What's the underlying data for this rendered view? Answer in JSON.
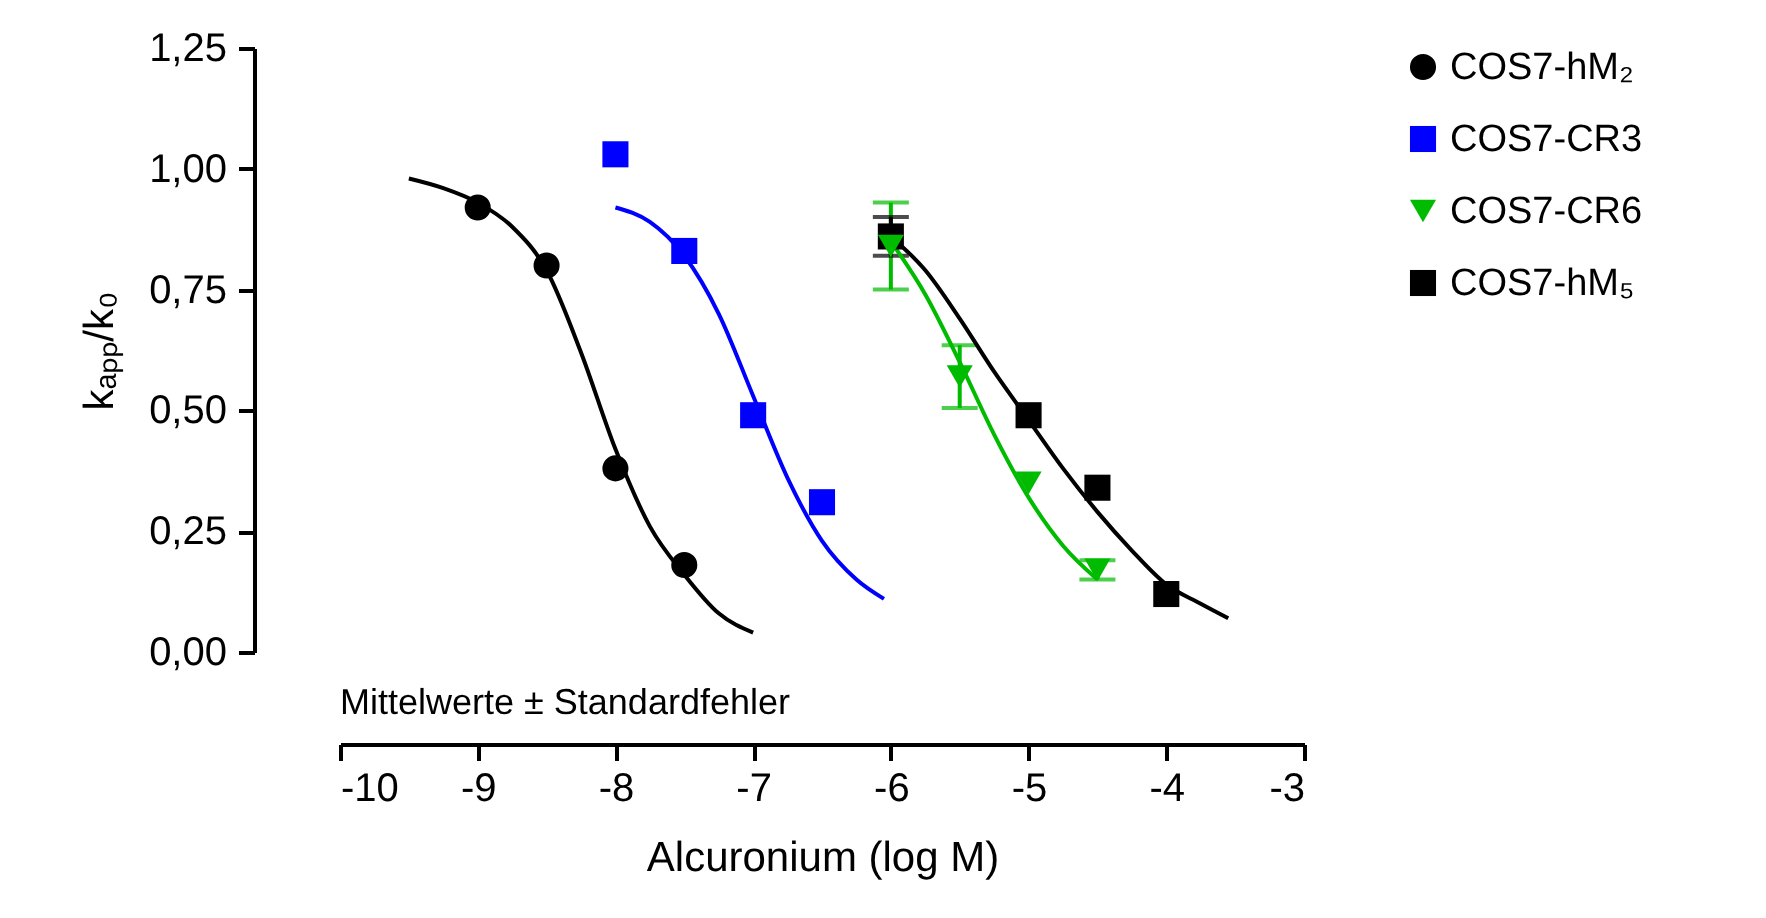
{
  "chart_data": {
    "type": "scatter",
    "xlabel": "Alcuronium (log M)",
    "ylabel": "kₐₚₚ/k₀",
    "annotations": [
      "Mittelwerte ± Standardfehler"
    ],
    "xlim": [
      -10,
      -3
    ],
    "xticks": [
      -10,
      -9,
      -8,
      -7,
      -6,
      -5,
      -4,
      -3
    ],
    "ylim": [
      0,
      1.25
    ],
    "yticks": [
      {
        "value": 0,
        "label": "0,00"
      },
      {
        "value": 0.25,
        "label": "0,25"
      },
      {
        "value": 0.5,
        "label": "0,50"
      },
      {
        "value": 0.75,
        "label": "0,75"
      },
      {
        "value": 1,
        "label": "1,00"
      },
      {
        "value": 1.25,
        "label": "1,25"
      }
    ],
    "legend": "right",
    "series": [
      {
        "name": "COS7-hM₂",
        "color": "#000000",
        "marker": "circle",
        "x": [
          -9,
          -8.5,
          -8,
          -7.5
        ],
        "values": [
          0.92,
          0.8,
          0.38,
          0.18
        ]
      },
      {
        "name": "COS7-CR3",
        "color": "#0000ff",
        "marker": "square",
        "x": [
          -8,
          -7.5,
          -7,
          -6.5
        ],
        "values": [
          1.03,
          0.83,
          0.49,
          0.31
        ]
      },
      {
        "name": "COS7-CR6",
        "color": "#00bb00",
        "marker": "triangle",
        "x": [
          -6,
          -5.5,
          -5,
          -4.5
        ],
        "values": [
          0.84,
          0.57,
          0.35,
          0.17
        ],
        "errors": [
          0.09,
          0.065,
          null,
          0.02
        ]
      },
      {
        "name": "COS7-hM₅",
        "color": "#000000",
        "marker": "square",
        "x": [
          -6,
          -5,
          -4.5,
          -4
        ],
        "values": [
          0.86,
          0.49,
          0.34,
          0.12
        ],
        "errors": [
          0.04,
          null,
          null,
          null
        ]
      },
      {
        "type": "line",
        "color": "#000000",
        "marker": "none",
        "x": [
          -9.5,
          -9.25,
          -9,
          -8.75,
          -8.5,
          -8.25,
          -8,
          -7.75,
          -7.5,
          -7.25,
          -7
        ],
        "values": [
          0.98,
          0.96,
          0.93,
          0.88,
          0.79,
          0.62,
          0.42,
          0.26,
          0.16,
          0.08,
          0.04
        ]
      },
      {
        "type": "line",
        "color": "#0000ff",
        "marker": "none",
        "x": [
          -8,
          -7.75,
          -7.5,
          -7.25,
          -7,
          -6.75,
          -6.5,
          -6.25,
          -6.05
        ],
        "values": [
          0.92,
          0.89,
          0.82,
          0.7,
          0.53,
          0.36,
          0.23,
          0.15,
          0.11
        ]
      },
      {
        "type": "line",
        "color": "#00bb00",
        "marker": "none",
        "x": [
          -6,
          -5.75,
          -5.5,
          -5.25,
          -5,
          -4.75,
          -4.5
        ],
        "values": [
          0.85,
          0.74,
          0.6,
          0.45,
          0.32,
          0.22,
          0.15
        ]
      },
      {
        "type": "line",
        "color": "#000000",
        "marker": "none",
        "x": [
          -6,
          -5.75,
          -5.5,
          -5.25,
          -5,
          -4.75,
          -4.5,
          -4.25,
          -4,
          -3.75,
          -3.55
        ],
        "values": [
          0.86,
          0.79,
          0.69,
          0.58,
          0.48,
          0.38,
          0.29,
          0.21,
          0.14,
          0.1,
          0.07
        ]
      }
    ]
  }
}
